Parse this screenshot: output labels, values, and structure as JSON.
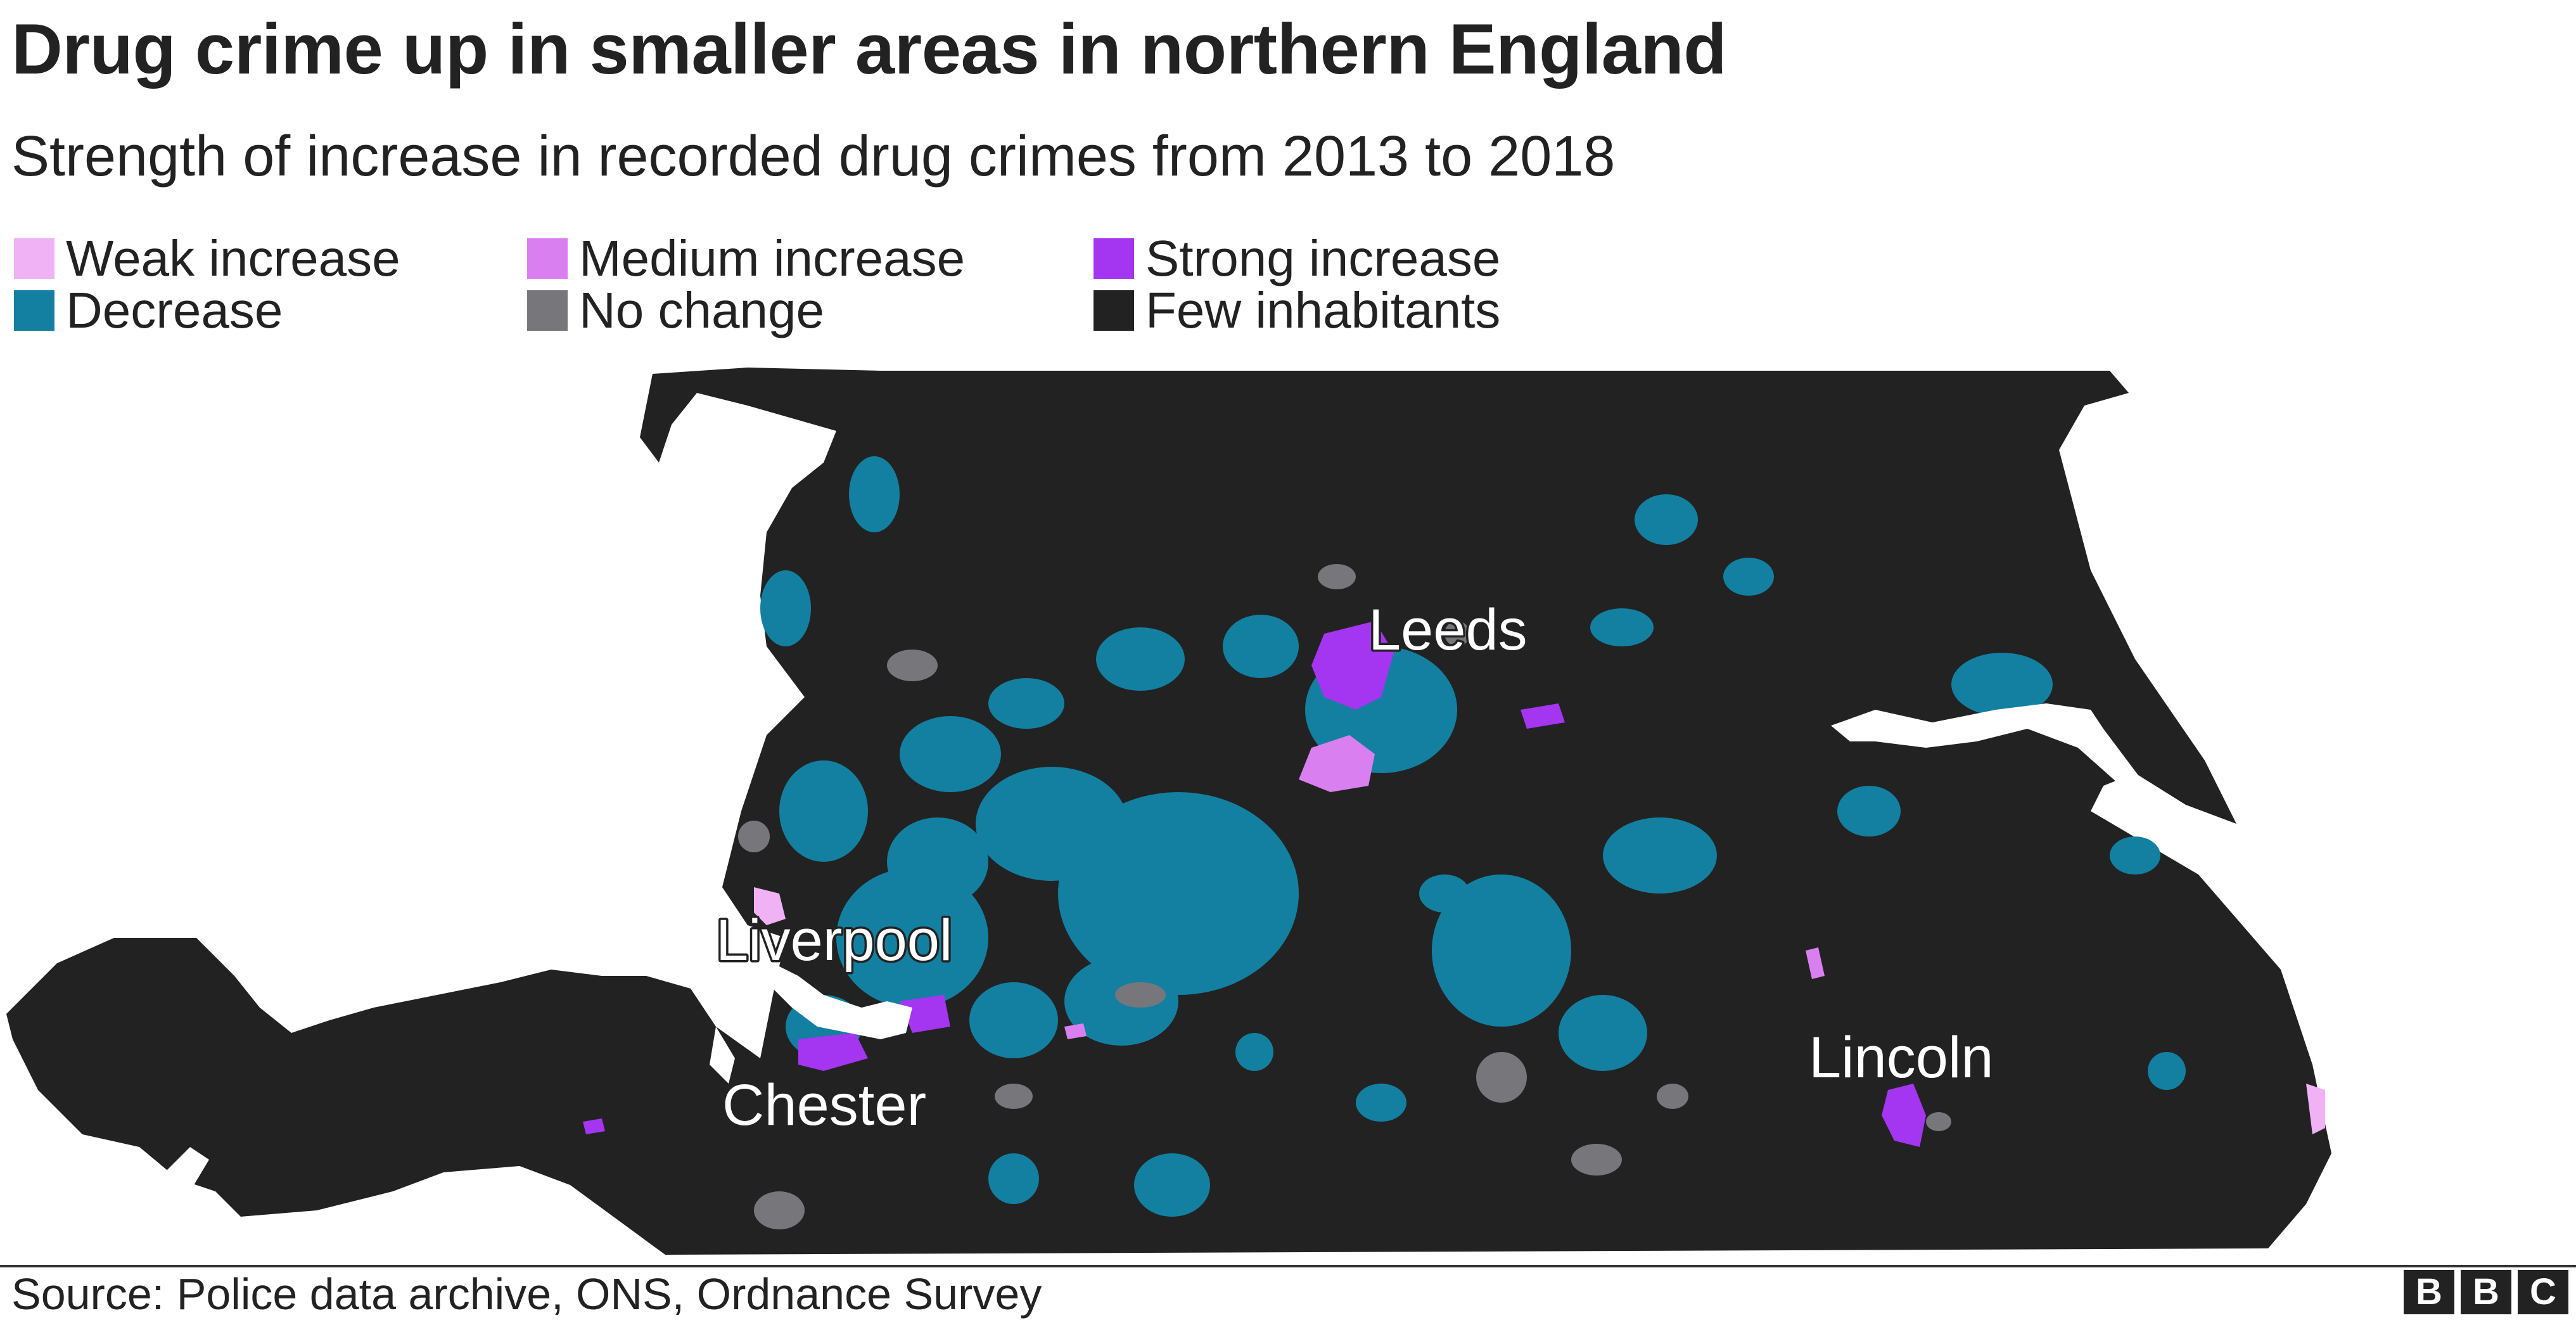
{
  "header": {
    "title": "Drug crime up in smaller areas in northern England",
    "subtitle": "Strength of increase in recorded drug crimes from 2013 to 2018"
  },
  "legend": [
    {
      "label": "Weak increase",
      "color": "#f0b1f5"
    },
    {
      "label": "Medium increase",
      "color": "#d97ff0"
    },
    {
      "label": "Strong increase",
      "color": "#a435f0"
    },
    {
      "label": "Decrease",
      "color": "#1380a1"
    },
    {
      "label": "No change",
      "color": "#77767b"
    },
    {
      "label": "Few inhabitants",
      "color": "#222222"
    }
  ],
  "map": {
    "cities": [
      "Leeds",
      "Liverpool",
      "Chester",
      "Lincoln"
    ]
  },
  "footer": {
    "source": "Source: Police data archive, ONS, Ordnance Survey",
    "logo": [
      "B",
      "B",
      "C"
    ]
  }
}
